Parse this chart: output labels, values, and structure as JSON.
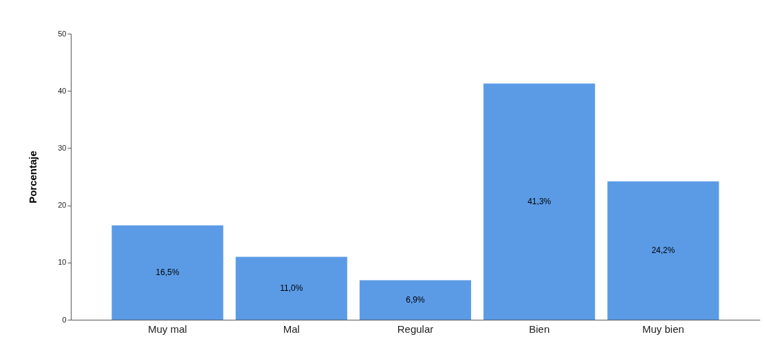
{
  "chart_data": {
    "type": "bar",
    "ylabel": "Porcentaje",
    "categories": [
      "Muy mal",
      "Mal",
      "Regular",
      "Bien",
      "Muy bien"
    ],
    "values": [
      16.5,
      11.0,
      6.9,
      41.3,
      24.2
    ],
    "value_labels": [
      "16,5%",
      "11,0%",
      "6,9%",
      "41,3%",
      "24,2%"
    ],
    "color": "#5b9be6",
    "ylim": [
      0,
      50
    ],
    "yticks": [
      0,
      10,
      20,
      30,
      40,
      50
    ],
    "grid": false
  }
}
